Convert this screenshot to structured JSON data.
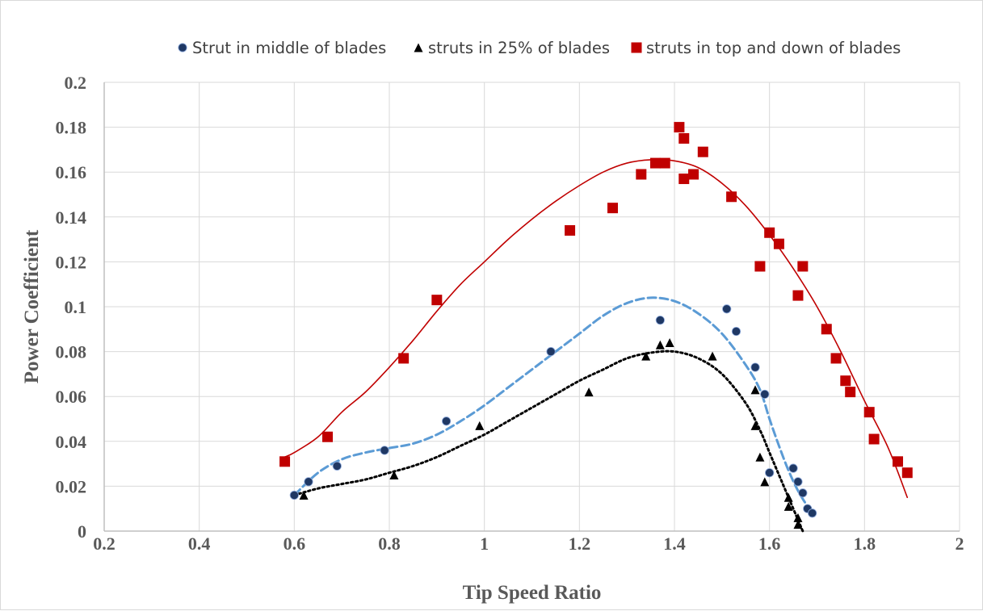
{
  "chart_data": {
    "type": "scatter",
    "title": "",
    "xlabel": "Tip Speed Ratio",
    "ylabel": "Power Coefficient",
    "xlim": [
      0.2,
      2
    ],
    "ylim": [
      0,
      0.2
    ],
    "x_ticks": [
      "0.2",
      "0.4",
      "0.6",
      "0.8",
      "1",
      "1.2",
      "1.4",
      "1.6",
      "1.8",
      "2"
    ],
    "y_ticks": [
      "0",
      "0.02",
      "0.04",
      "0.06",
      "0.08",
      "0.1",
      "0.12",
      "0.14",
      "0.16",
      "0.18",
      "0.2"
    ],
    "grid": {
      "vertical": true,
      "horizontal": true
    },
    "legend_position": "top",
    "series": [
      {
        "name": "Strut in middle of blades",
        "marker": "circle",
        "color": "#1f3864",
        "trendline_color": "#5b9bd5",
        "trendline_style": "dashed",
        "points": [
          [
            0.6,
            0.016
          ],
          [
            0.63,
            0.022
          ],
          [
            0.69,
            0.029
          ],
          [
            0.79,
            0.036
          ],
          [
            0.92,
            0.049
          ],
          [
            1.14,
            0.08
          ],
          [
            1.37,
            0.094
          ],
          [
            1.51,
            0.099
          ],
          [
            1.53,
            0.089
          ],
          [
            1.57,
            0.073
          ],
          [
            1.59,
            0.061
          ],
          [
            1.6,
            0.026
          ],
          [
            1.65,
            0.028
          ],
          [
            1.66,
            0.022
          ],
          [
            1.67,
            0.017
          ],
          [
            1.68,
            0.01
          ],
          [
            1.69,
            0.008
          ]
        ],
        "trendline": [
          [
            0.6,
            0.016
          ],
          [
            0.65,
            0.026
          ],
          [
            0.7,
            0.032
          ],
          [
            0.75,
            0.035
          ],
          [
            0.8,
            0.037
          ],
          [
            0.85,
            0.039
          ],
          [
            0.9,
            0.043
          ],
          [
            0.95,
            0.049
          ],
          [
            1.0,
            0.056
          ],
          [
            1.05,
            0.064
          ],
          [
            1.1,
            0.072
          ],
          [
            1.15,
            0.08
          ],
          [
            1.2,
            0.088
          ],
          [
            1.25,
            0.096
          ],
          [
            1.3,
            0.1016
          ],
          [
            1.35,
            0.104
          ],
          [
            1.4,
            0.1025
          ],
          [
            1.45,
            0.097
          ],
          [
            1.5,
            0.088
          ],
          [
            1.55,
            0.074
          ],
          [
            1.58,
            0.063
          ],
          [
            1.6,
            0.05
          ],
          [
            1.62,
            0.038
          ],
          [
            1.64,
            0.027
          ],
          [
            1.66,
            0.018
          ],
          [
            1.68,
            0.011
          ],
          [
            1.69,
            0.008
          ]
        ]
      },
      {
        "name": "struts in 25% of blades",
        "marker": "triangle",
        "color": "#000000",
        "trendline_color": "#000000",
        "trendline_style": "dotted",
        "points": [
          [
            0.62,
            0.016
          ],
          [
            0.81,
            0.025
          ],
          [
            0.99,
            0.047
          ],
          [
            1.22,
            0.062
          ],
          [
            1.34,
            0.078
          ],
          [
            1.37,
            0.083
          ],
          [
            1.39,
            0.084
          ],
          [
            1.48,
            0.078
          ],
          [
            1.57,
            0.063
          ],
          [
            1.57,
            0.047
          ],
          [
            1.58,
            0.033
          ],
          [
            1.59,
            0.022
          ],
          [
            1.64,
            0.015
          ],
          [
            1.64,
            0.011
          ],
          [
            1.66,
            0.006
          ],
          [
            1.66,
            0.003
          ]
        ],
        "trendline": [
          [
            0.6,
            0.016
          ],
          [
            0.65,
            0.019
          ],
          [
            0.7,
            0.021
          ],
          [
            0.75,
            0.023
          ],
          [
            0.8,
            0.026
          ],
          [
            0.85,
            0.029
          ],
          [
            0.9,
            0.033
          ],
          [
            0.95,
            0.038
          ],
          [
            1.0,
            0.043
          ],
          [
            1.05,
            0.049
          ],
          [
            1.1,
            0.055
          ],
          [
            1.15,
            0.061
          ],
          [
            1.2,
            0.067
          ],
          [
            1.25,
            0.072
          ],
          [
            1.3,
            0.077
          ],
          [
            1.35,
            0.0795
          ],
          [
            1.4,
            0.08
          ],
          [
            1.45,
            0.077
          ],
          [
            1.5,
            0.07
          ],
          [
            1.55,
            0.057
          ],
          [
            1.58,
            0.045
          ],
          [
            1.6,
            0.035
          ],
          [
            1.62,
            0.025
          ],
          [
            1.64,
            0.015
          ],
          [
            1.66,
            0.005
          ],
          [
            1.67,
            0.0
          ]
        ]
      },
      {
        "name": "struts in top and down of blades",
        "marker": "square",
        "color": "#c00000",
        "trendline_color": "#c00000",
        "trendline_style": "solid",
        "points": [
          [
            0.58,
            0.031
          ],
          [
            0.67,
            0.042
          ],
          [
            0.83,
            0.077
          ],
          [
            0.9,
            0.103
          ],
          [
            1.18,
            0.134
          ],
          [
            1.27,
            0.144
          ],
          [
            1.33,
            0.159
          ],
          [
            1.36,
            0.164
          ],
          [
            1.38,
            0.164
          ],
          [
            1.41,
            0.18
          ],
          [
            1.42,
            0.175
          ],
          [
            1.42,
            0.157
          ],
          [
            1.44,
            0.159
          ],
          [
            1.46,
            0.169
          ],
          [
            1.52,
            0.149
          ],
          [
            1.58,
            0.118
          ],
          [
            1.6,
            0.133
          ],
          [
            1.62,
            0.128
          ],
          [
            1.66,
            0.105
          ],
          [
            1.67,
            0.118
          ],
          [
            1.72,
            0.09
          ],
          [
            1.74,
            0.077
          ],
          [
            1.76,
            0.067
          ],
          [
            1.77,
            0.062
          ],
          [
            1.81,
            0.053
          ],
          [
            1.82,
            0.041
          ],
          [
            1.87,
            0.031
          ],
          [
            1.89,
            0.026
          ]
        ],
        "trendline": [
          [
            0.58,
            0.033
          ],
          [
            0.6,
            0.035
          ],
          [
            0.65,
            0.042
          ],
          [
            0.7,
            0.053
          ],
          [
            0.75,
            0.062
          ],
          [
            0.8,
            0.073
          ],
          [
            0.85,
            0.085
          ],
          [
            0.9,
            0.098
          ],
          [
            0.95,
            0.11
          ],
          [
            1.0,
            0.12
          ],
          [
            1.05,
            0.13
          ],
          [
            1.1,
            0.139
          ],
          [
            1.15,
            0.147
          ],
          [
            1.2,
            0.154
          ],
          [
            1.25,
            0.16
          ],
          [
            1.3,
            0.164
          ],
          [
            1.35,
            0.1655
          ],
          [
            1.4,
            0.165
          ],
          [
            1.45,
            0.162
          ],
          [
            1.5,
            0.155
          ],
          [
            1.55,
            0.145
          ],
          [
            1.6,
            0.132
          ],
          [
            1.65,
            0.117
          ],
          [
            1.7,
            0.1
          ],
          [
            1.75,
            0.08
          ],
          [
            1.8,
            0.058
          ],
          [
            1.85,
            0.037
          ],
          [
            1.89,
            0.015
          ]
        ]
      }
    ]
  }
}
